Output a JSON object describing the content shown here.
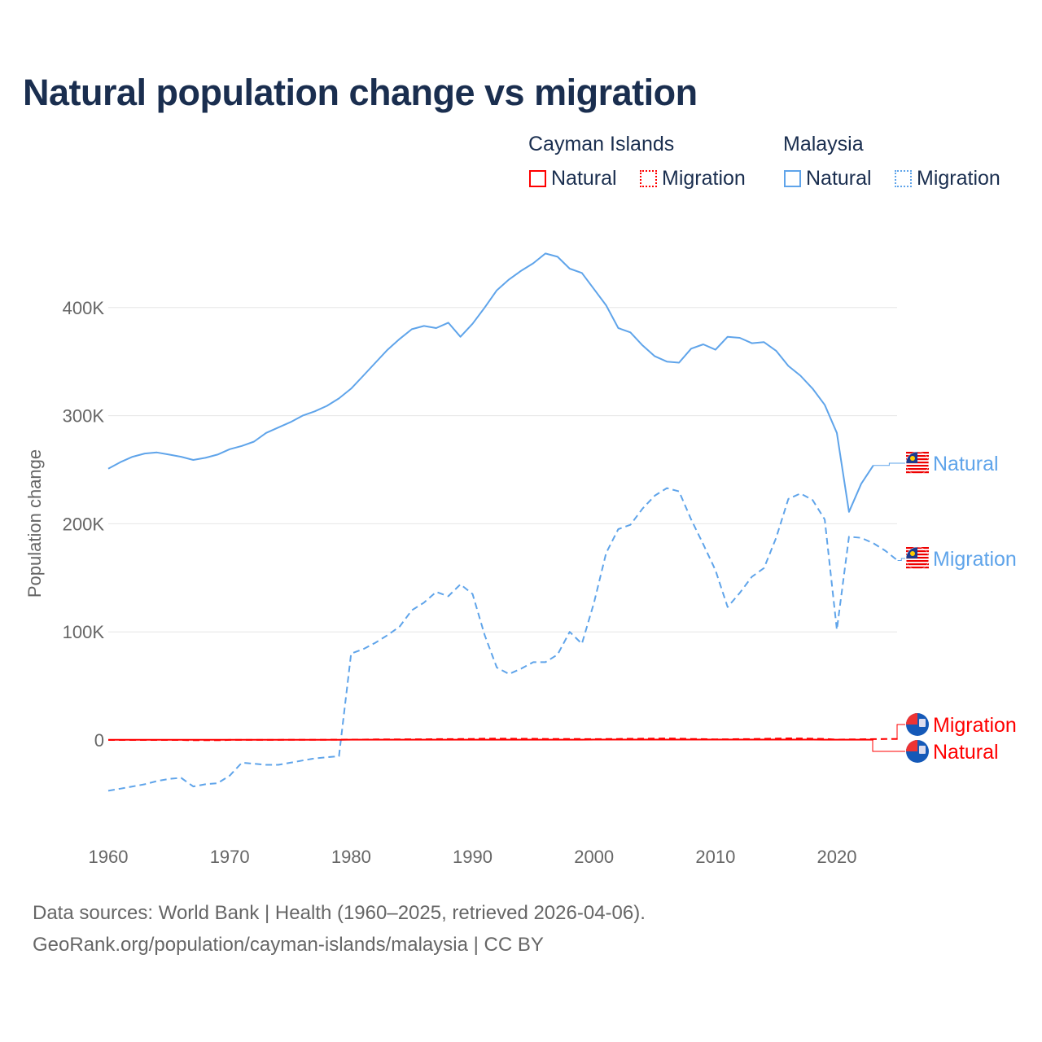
{
  "title": "Natural population change vs migration",
  "legend": {
    "groups": [
      {
        "name": "Cayman Islands",
        "color": "#ff0000",
        "items": [
          "Natural",
          "Migration"
        ]
      },
      {
        "name": "Malaysia",
        "color": "#5fa4ea",
        "items": [
          "Natural",
          "Migration"
        ]
      }
    ]
  },
  "footer": {
    "line1": "Data sources: World Bank | Health (1960–2025, retrieved 2026-04-06).",
    "line2": "GeoRank.org/population/cayman-islands/malaysia | CC BY"
  },
  "chart_data": {
    "type": "line",
    "title": "Natural population change vs migration",
    "xlabel": "",
    "ylabel": "Population change",
    "xlim": [
      1960,
      2025
    ],
    "ylim": [
      -80000,
      460000
    ],
    "x_ticks": [
      1960,
      1970,
      1980,
      1990,
      2000,
      2010,
      2020
    ],
    "y_ticks": [
      0,
      100000,
      200000,
      300000,
      400000
    ],
    "y_tick_labels": [
      "0",
      "100K",
      "200K",
      "300K",
      "400K"
    ],
    "grid": true,
    "legend_position": "top-right",
    "series": [
      {
        "name": "Malaysia Natural",
        "label": "Natural",
        "color": "#5fa4ea",
        "dash": false,
        "start": 1960,
        "values": [
          251000,
          257000,
          262000,
          265000,
          266000,
          264000,
          262000,
          259000,
          261000,
          264000,
          269000,
          272000,
          276000,
          284000,
          289000,
          294000,
          300000,
          304000,
          309000,
          316000,
          325000,
          337000,
          349000,
          361000,
          371000,
          380000,
          383000,
          381000,
          386000,
          373000,
          385000,
          400000,
          416000,
          426000,
          434000,
          441000,
          450000,
          447000,
          436000,
          432000,
          417000,
          402000,
          381000,
          377000,
          365000,
          355000,
          350000,
          349000,
          362000,
          366000,
          361000,
          373000,
          372000,
          367000,
          368000,
          360000,
          346000,
          337000,
          325000,
          310000,
          284000,
          211000,
          237000,
          254000
        ]
      },
      {
        "name": "Malaysia Migration",
        "label": "Migration",
        "color": "#5fa4ea",
        "dash": true,
        "start": 1960,
        "values": [
          -47000,
          -45000,
          -43000,
          -41000,
          -38000,
          -36000,
          -35000,
          -43000,
          -41000,
          -40000,
          -33000,
          -21000,
          -22000,
          -23000,
          -23000,
          -21000,
          -19000,
          -17000,
          -16000,
          -15000,
          80000,
          84000,
          90000,
          97000,
          105000,
          120000,
          127000,
          137000,
          133000,
          144000,
          135000,
          97000,
          67000,
          61000,
          66000,
          72000,
          72000,
          79000,
          100000,
          89000,
          127000,
          173000,
          195000,
          199000,
          214000,
          226000,
          233000,
          230000,
          204000,
          181000,
          157000,
          123000,
          136000,
          151000,
          159000,
          187000,
          223000,
          228000,
          222000,
          204000,
          102000,
          188000,
          187000,
          182000,
          175000,
          166000
        ]
      },
      {
        "name": "Cayman Islands Natural",
        "label": "Natural",
        "color": "#ff0000",
        "dash": false,
        "start": 1960,
        "values": [
          200,
          200,
          200,
          200,
          200,
          200,
          200,
          200,
          200,
          200,
          200,
          200,
          200,
          200,
          200,
          200,
          200,
          200,
          200,
          200,
          300,
          300,
          300,
          300,
          300,
          300,
          300,
          300,
          300,
          300,
          300,
          300,
          300,
          300,
          300,
          300,
          300,
          300,
          300,
          300,
          400,
          400,
          400,
          400,
          400,
          400,
          400,
          400,
          400,
          400,
          400,
          400,
          400,
          400,
          400,
          400,
          400,
          400,
          400,
          300,
          300,
          300,
          300,
          300
        ]
      },
      {
        "name": "Cayman Islands Migration",
        "label": "Migration",
        "color": "#ff0000",
        "dash": true,
        "start": 1960,
        "values": [
          0,
          0,
          0,
          0,
          0,
          0,
          0,
          -200,
          -200,
          -200,
          100,
          100,
          100,
          100,
          100,
          200,
          200,
          200,
          200,
          300,
          400,
          400,
          500,
          500,
          600,
          700,
          700,
          800,
          800,
          900,
          1000,
          1200,
          1300,
          1200,
          1100,
          1100,
          1000,
          1000,
          1000,
          900,
          800,
          900,
          1000,
          1100,
          1200,
          1300,
          1400,
          1300,
          1000,
          800,
          600,
          700,
          800,
          900,
          1100,
          1300,
          1500,
          1400,
          1200,
          1000,
          300,
          500,
          700,
          800,
          900,
          1000
        ]
      }
    ]
  }
}
